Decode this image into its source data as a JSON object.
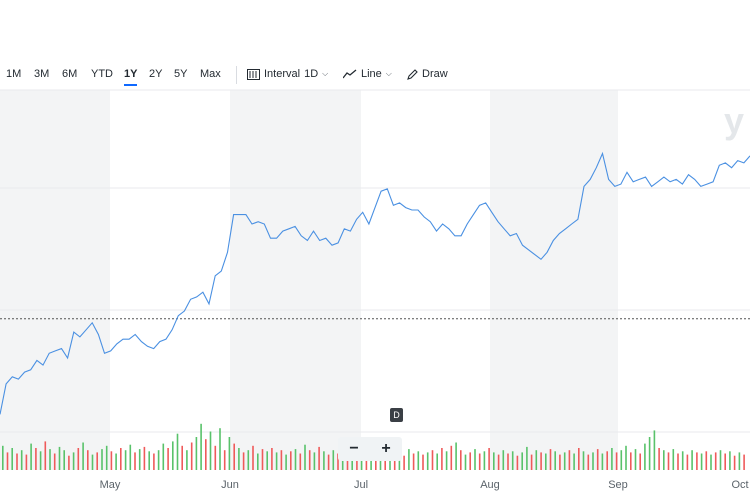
{
  "toolbar": {
    "ranges": [
      "1M",
      "3M",
      "6M",
      "YTD",
      "1Y",
      "2Y",
      "5Y",
      "Max"
    ],
    "active_range": "1Y",
    "interval_label": "Interval",
    "interval_value": "1D",
    "line_label": "Line",
    "draw_label": "Draw",
    "icons": [
      "candle-interval-icon",
      "line-chart-icon",
      "pencil-icon",
      "chevron-down-icon"
    ]
  },
  "zoom": {
    "minus": "−",
    "plus": "+"
  },
  "d_badge": "D",
  "watermark": "y",
  "colors": {
    "line": "#4a90e2",
    "shade": "#f3f4f5",
    "vol_up": "#59c26a",
    "vol_down": "#ef5a5a",
    "grid": "#e8eaed"
  },
  "chart_data": {
    "type": "line",
    "months": [
      "May",
      "Jun",
      "Jul",
      "Aug",
      "Sep",
      "Oct"
    ],
    "ylim": [
      0,
      100
    ],
    "reference_line": 36.7,
    "price_series": [
      -4,
      9,
      12,
      11,
      14,
      15,
      19,
      17,
      22,
      23,
      24,
      20,
      31,
      29,
      32,
      35,
      30,
      22,
      23,
      26,
      28,
      28,
      30,
      27,
      25,
      24,
      27,
      28,
      32,
      38,
      40,
      45,
      46,
      48,
      43,
      55,
      57,
      65,
      81,
      81,
      81,
      77,
      78,
      77,
      71,
      71,
      74,
      75,
      76,
      72,
      70,
      74,
      70,
      71,
      68,
      69,
      75,
      74,
      79,
      82,
      77,
      84,
      91,
      92,
      85,
      86,
      84,
      83,
      83,
      80,
      78,
      74,
      77,
      75,
      72,
      72,
      77,
      81,
      85,
      86,
      82,
      78,
      75,
      72,
      73,
      68,
      66,
      64,
      62,
      65,
      70,
      73,
      75,
      77,
      79,
      93,
      96,
      101,
      107,
      96,
      93,
      94,
      99,
      95,
      96,
      97,
      93,
      95,
      97,
      95,
      96,
      94,
      98,
      96,
      93,
      94,
      95,
      102,
      103,
      101,
      104,
      103,
      106
    ],
    "volume": [
      [
        22,
        1
      ],
      [
        16,
        0
      ],
      [
        20,
        1
      ],
      [
        15,
        0
      ],
      [
        18,
        1
      ],
      [
        14,
        0
      ],
      [
        24,
        1
      ],
      [
        20,
        0
      ],
      [
        17,
        1
      ],
      [
        26,
        0
      ],
      [
        19,
        1
      ],
      [
        15,
        0
      ],
      [
        21,
        1
      ],
      [
        18,
        1
      ],
      [
        13,
        0
      ],
      [
        16,
        1
      ],
      [
        20,
        0
      ],
      [
        25,
        1
      ],
      [
        18,
        0
      ],
      [
        14,
        1
      ],
      [
        16,
        0
      ],
      [
        19,
        1
      ],
      [
        22,
        1
      ],
      [
        17,
        0
      ],
      [
        15,
        1
      ],
      [
        20,
        0
      ],
      [
        18,
        1
      ],
      [
        23,
        1
      ],
      [
        16,
        0
      ],
      [
        19,
        1
      ],
      [
        21,
        0
      ],
      [
        17,
        1
      ],
      [
        15,
        0
      ],
      [
        18,
        1
      ],
      [
        24,
        1
      ],
      [
        20,
        0
      ],
      [
        26,
        1
      ],
      [
        33,
        1
      ],
      [
        22,
        0
      ],
      [
        18,
        1
      ],
      [
        25,
        0
      ],
      [
        30,
        1
      ],
      [
        42,
        1
      ],
      [
        28,
        0
      ],
      [
        35,
        1
      ],
      [
        22,
        0
      ],
      [
        38,
        1
      ],
      [
        18,
        0
      ],
      [
        30,
        1
      ],
      [
        24,
        0
      ],
      [
        20,
        1
      ],
      [
        16,
        0
      ],
      [
        18,
        1
      ],
      [
        22,
        0
      ],
      [
        15,
        1
      ],
      [
        19,
        0
      ],
      [
        17,
        1
      ],
      [
        20,
        0
      ],
      [
        16,
        1
      ],
      [
        18,
        0
      ],
      [
        14,
        1
      ],
      [
        17,
        0
      ],
      [
        19,
        1
      ],
      [
        15,
        0
      ],
      [
        23,
        1
      ],
      [
        18,
        0
      ],
      [
        16,
        1
      ],
      [
        21,
        0
      ],
      [
        17,
        1
      ],
      [
        14,
        0
      ],
      [
        18,
        1
      ],
      [
        15,
        0
      ],
      [
        20,
        1
      ],
      [
        16,
        0
      ],
      [
        22,
        1
      ],
      [
        17,
        0
      ],
      [
        15,
        1
      ],
      [
        19,
        0
      ],
      [
        16,
        1
      ],
      [
        14,
        0
      ],
      [
        18,
        1
      ],
      [
        15,
        0
      ],
      [
        17,
        1
      ],
      [
        14,
        0
      ],
      [
        16,
        1
      ],
      [
        13,
        0
      ],
      [
        19,
        1
      ],
      [
        15,
        0
      ],
      [
        17,
        1
      ],
      [
        14,
        0
      ],
      [
        16,
        1
      ],
      [
        18,
        0
      ],
      [
        15,
        1
      ],
      [
        20,
        0
      ],
      [
        17,
        1
      ],
      [
        22,
        0
      ],
      [
        25,
        1
      ],
      [
        18,
        0
      ],
      [
        14,
        1
      ],
      [
        16,
        0
      ],
      [
        19,
        1
      ],
      [
        15,
        0
      ],
      [
        17,
        1
      ],
      [
        20,
        0
      ],
      [
        16,
        1
      ],
      [
        14,
        0
      ],
      [
        18,
        1
      ],
      [
        15,
        0
      ],
      [
        17,
        1
      ],
      [
        13,
        0
      ],
      [
        16,
        1
      ],
      [
        21,
        1
      ],
      [
        14,
        0
      ],
      [
        18,
        1
      ],
      [
        16,
        0
      ],
      [
        15,
        1
      ],
      [
        19,
        0
      ],
      [
        17,
        1
      ],
      [
        14,
        0
      ],
      [
        16,
        1
      ],
      [
        18,
        0
      ],
      [
        15,
        1
      ],
      [
        20,
        0
      ],
      [
        17,
        1
      ],
      [
        14,
        0
      ],
      [
        16,
        1
      ],
      [
        19,
        0
      ],
      [
        15,
        1
      ],
      [
        17,
        0
      ],
      [
        20,
        1
      ],
      [
        16,
        0
      ],
      [
        18,
        1
      ],
      [
        22,
        1
      ],
      [
        16,
        0
      ],
      [
        19,
        1
      ],
      [
        15,
        0
      ],
      [
        24,
        1
      ],
      [
        30,
        1
      ],
      [
        36,
        1
      ],
      [
        20,
        0
      ],
      [
        18,
        1
      ],
      [
        16,
        0
      ],
      [
        19,
        1
      ],
      [
        15,
        0
      ],
      [
        17,
        1
      ],
      [
        14,
        0
      ],
      [
        18,
        1
      ],
      [
        16,
        0
      ],
      [
        15,
        1
      ],
      [
        17,
        0
      ],
      [
        14,
        1
      ],
      [
        16,
        0
      ],
      [
        18,
        1
      ],
      [
        15,
        0
      ],
      [
        17,
        1
      ],
      [
        13,
        0
      ],
      [
        16,
        1
      ],
      [
        14,
        0
      ]
    ]
  }
}
